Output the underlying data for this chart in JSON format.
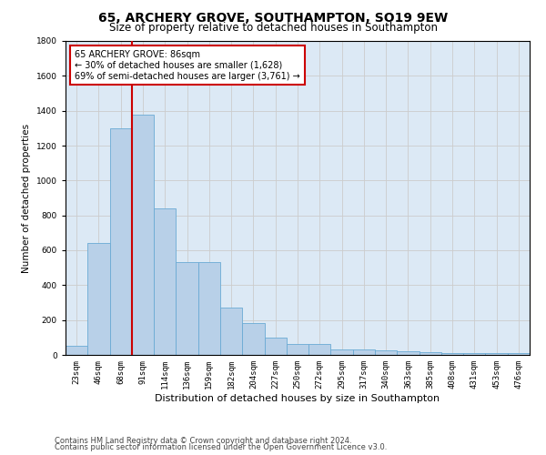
{
  "title": "65, ARCHERY GROVE, SOUTHAMPTON, SO19 9EW",
  "subtitle": "Size of property relative to detached houses in Southampton",
  "xlabel": "Distribution of detached houses by size in Southampton",
  "ylabel": "Number of detached properties",
  "categories": [
    "23sqm",
    "46sqm",
    "68sqm",
    "91sqm",
    "114sqm",
    "136sqm",
    "159sqm",
    "182sqm",
    "204sqm",
    "227sqm",
    "250sqm",
    "272sqm",
    "295sqm",
    "317sqm",
    "340sqm",
    "363sqm",
    "385sqm",
    "408sqm",
    "431sqm",
    "453sqm",
    "476sqm"
  ],
  "values": [
    50,
    640,
    1300,
    1380,
    840,
    530,
    530,
    270,
    185,
    100,
    62,
    62,
    30,
    30,
    25,
    20,
    15,
    12,
    10,
    10,
    10
  ],
  "bar_color": "#b8d0e8",
  "bar_edge_color": "#6aaad4",
  "vline_color": "#cc0000",
  "annotation_line1": "65 ARCHERY GROVE: 86sqm",
  "annotation_line2": "← 30% of detached houses are smaller (1,628)",
  "annotation_line3": "69% of semi-detached houses are larger (3,761) →",
  "annotation_box_color": "#ffffff",
  "annotation_box_edge_color": "#cc0000",
  "ylim": [
    0,
    1800
  ],
  "yticks": [
    0,
    200,
    400,
    600,
    800,
    1000,
    1200,
    1400,
    1600,
    1800
  ],
  "grid_color": "#cccccc",
  "background_color": "#ffffff",
  "plot_bg_color": "#dce9f5",
  "footer_line1": "Contains HM Land Registry data © Crown copyright and database right 2024.",
  "footer_line2": "Contains public sector information licensed under the Open Government Licence v3.0.",
  "title_fontsize": 10,
  "subtitle_fontsize": 8.5,
  "xlabel_fontsize": 8,
  "ylabel_fontsize": 7.5,
  "tick_fontsize": 6.5,
  "annotation_fontsize": 7,
  "footer_fontsize": 6
}
